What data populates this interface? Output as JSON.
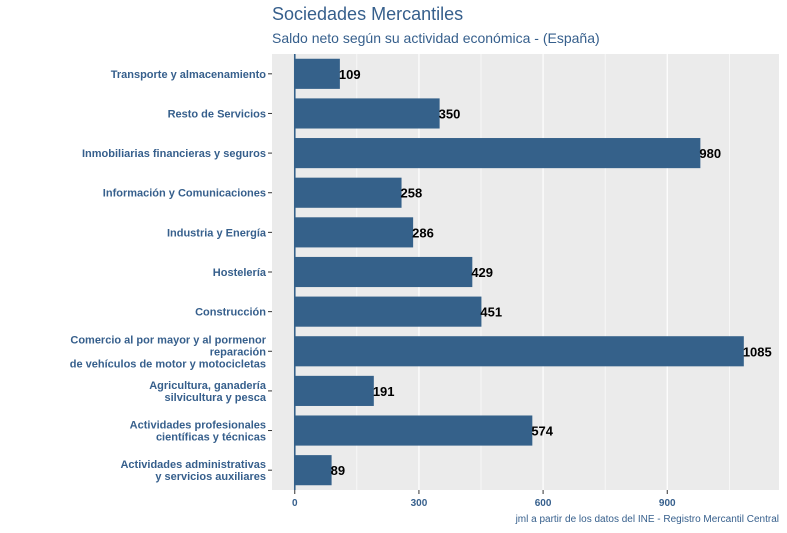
{
  "chart_data": {
    "type": "bar",
    "orientation": "horizontal",
    "title": "Sociedades Mercantiles",
    "subtitle": "Saldo neto según su actividad económica - (España)",
    "caption": "jml a partir de los datos del INE - Registro Mercantil Central",
    "xlabel": "",
    "ylabel": "",
    "categories": [
      [
        "Transporte y almacenamiento"
      ],
      [
        "Resto de Servicios"
      ],
      [
        "Inmobiliarias financieras y seguros"
      ],
      [
        "Información y Comunicaciones"
      ],
      [
        "Industria y Energía"
      ],
      [
        "Hostelería"
      ],
      [
        "Construcción"
      ],
      [
        "Comercio al por mayor y al pormenor",
        "reparación",
        "de vehículos de motor y motocicletas"
      ],
      [
        "Agricultura, ganadería",
        "silvicultura y pesca"
      ],
      [
        "Actividades profesionales",
        "científicas y técnicas"
      ],
      [
        "Actividades administrativas",
        "y servicios auxiliares"
      ]
    ],
    "values": [
      109,
      350,
      980,
      258,
      286,
      429,
      451,
      1085,
      191,
      574,
      89
    ],
    "xlim": [
      -55,
      1170
    ],
    "xticks": [
      0,
      300,
      600,
      900
    ],
    "grid": true,
    "colors": {
      "bar": "#35618a",
      "panel": "#ebebeb",
      "grid": "#ffffff",
      "text": "#365f8c",
      "zero_line": "#35618a"
    }
  }
}
